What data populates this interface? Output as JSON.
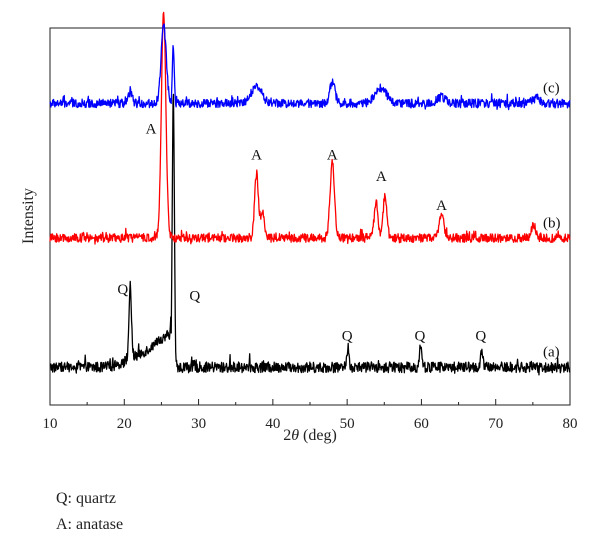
{
  "chart_data": {
    "type": "line",
    "xlabel_prefix": "2",
    "xlabel_symbol": "θ",
    "xlabel_suffix": " (deg)",
    "ylabel": "Intensity",
    "xlim": [
      10,
      80
    ],
    "x_ticks": [
      10,
      20,
      30,
      40,
      50,
      60,
      70,
      80
    ],
    "y_ticks": false,
    "grid": false,
    "series": [
      {
        "label": "(a)",
        "color": "#000000",
        "baseline": 0.0,
        "noise": 0.05,
        "ramp": {
          "start": 17,
          "end": 26.3,
          "height": 0.32
        },
        "peaks": [
          {
            "x": 20.8,
            "h": 0.62,
            "w": 0.18
          },
          {
            "x": 26.6,
            "h": 2.55,
            "w": 0.14
          },
          {
            "x": 50.1,
            "h": 0.18,
            "w": 0.15
          },
          {
            "x": 59.9,
            "h": 0.22,
            "w": 0.15
          },
          {
            "x": 68.1,
            "h": 0.15,
            "w": 0.15
          }
        ]
      },
      {
        "label": "(b)",
        "color": "#ff0000",
        "baseline": 1.2,
        "noise": 0.04,
        "peaks": [
          {
            "x": 25.3,
            "h": 2.1,
            "w": 0.3
          },
          {
            "x": 37.8,
            "h": 0.6,
            "w": 0.25
          },
          {
            "x": 38.6,
            "h": 0.25,
            "w": 0.25
          },
          {
            "x": 48.0,
            "h": 0.7,
            "w": 0.3
          },
          {
            "x": 53.9,
            "h": 0.35,
            "w": 0.25
          },
          {
            "x": 55.1,
            "h": 0.4,
            "w": 0.25
          },
          {
            "x": 62.7,
            "h": 0.2,
            "w": 0.35
          },
          {
            "x": 75.1,
            "h": 0.12,
            "w": 0.3
          }
        ]
      },
      {
        "label": "(c)",
        "color": "#0000ff",
        "baseline": 2.45,
        "noise": 0.04,
        "peaks": [
          {
            "x": 20.8,
            "h": 0.12,
            "w": 0.2
          },
          {
            "x": 25.3,
            "h": 0.72,
            "w": 0.35
          },
          {
            "x": 26.6,
            "h": 0.55,
            "w": 0.12
          },
          {
            "x": 37.8,
            "h": 0.16,
            "w": 0.7
          },
          {
            "x": 48.0,
            "h": 0.2,
            "w": 0.35
          },
          {
            "x": 54.5,
            "h": 0.14,
            "w": 0.8
          },
          {
            "x": 62.7,
            "h": 0.06,
            "w": 0.5
          },
          {
            "x": 75.5,
            "h": 0.05,
            "w": 0.5
          }
        ]
      }
    ],
    "annotations": [
      {
        "text": "Q",
        "x": 19.8,
        "y": 0.68
      },
      {
        "text": "Q",
        "x": 29.5,
        "y": 0.62
      },
      {
        "text": "Q",
        "x": 50.0,
        "y": 0.25
      },
      {
        "text": "Q",
        "x": 59.8,
        "y": 0.25
      },
      {
        "text": "Q",
        "x": 68.0,
        "y": 0.25
      },
      {
        "text": "A",
        "x": 23.6,
        "y": 2.17
      },
      {
        "text": "A",
        "x": 37.8,
        "y": 1.93
      },
      {
        "text": "A",
        "x": 48.0,
        "y": 1.93
      },
      {
        "text": "A",
        "x": 54.6,
        "y": 1.73
      },
      {
        "text": "A",
        "x": 62.7,
        "y": 1.46
      }
    ]
  },
  "notes": {
    "quartz": "Q: quartz",
    "anatase": "A: anatase"
  }
}
